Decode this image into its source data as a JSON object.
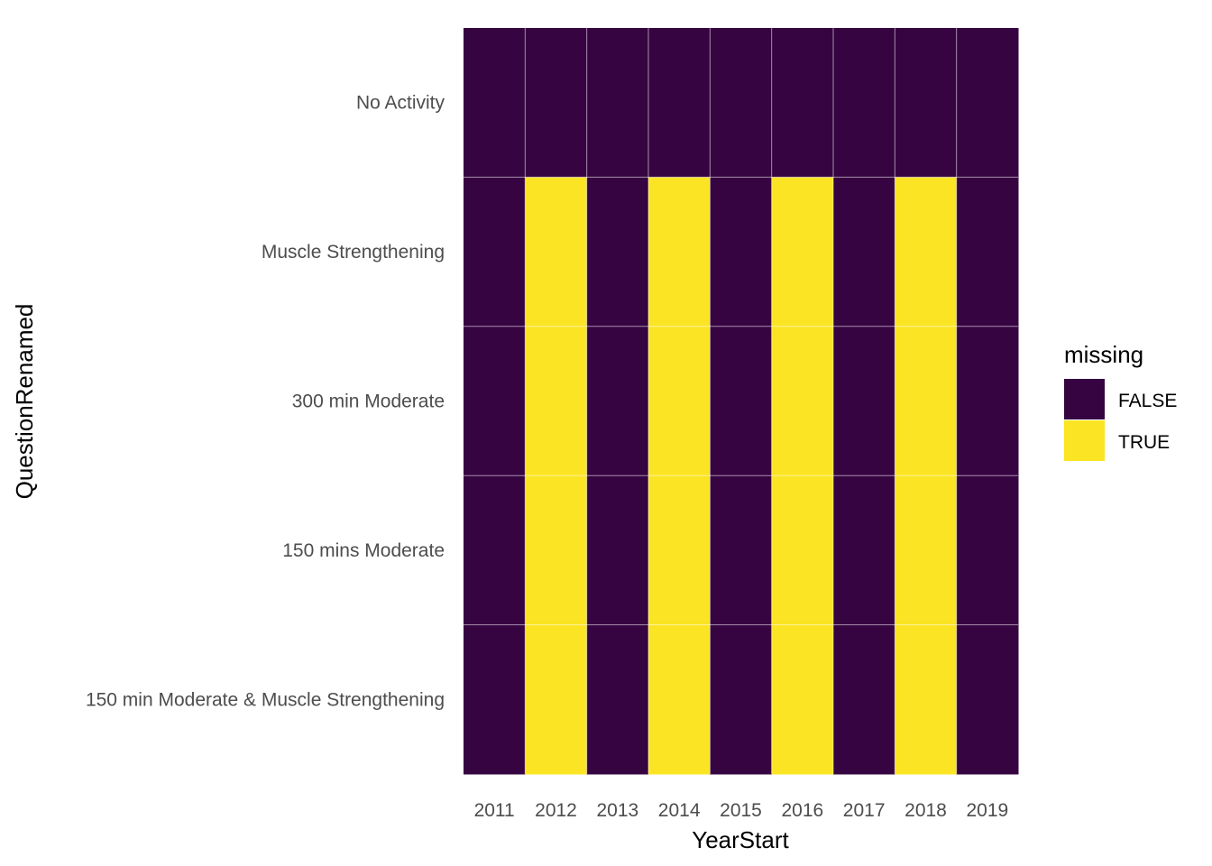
{
  "chart_data": {
    "type": "heatmap",
    "xlabel": "YearStart",
    "ylabel": "QuestionRenamed",
    "x": [
      "2011",
      "2012",
      "2013",
      "2014",
      "2015",
      "2016",
      "2017",
      "2018",
      "2019"
    ],
    "y": [
      "No Activity",
      "Muscle Strengthening",
      "300 min Moderate",
      "150 mins Moderate",
      "150 min Moderate & Muscle Strengthening"
    ],
    "values": [
      [
        false,
        false,
        false,
        false,
        false,
        false,
        false,
        false,
        false
      ],
      [
        false,
        true,
        false,
        true,
        false,
        true,
        false,
        true,
        false
      ],
      [
        false,
        true,
        false,
        true,
        false,
        true,
        false,
        true,
        false
      ],
      [
        false,
        true,
        false,
        true,
        false,
        true,
        false,
        true,
        false
      ],
      [
        false,
        true,
        false,
        true,
        false,
        true,
        false,
        true,
        false
      ]
    ],
    "legend": {
      "title": "missing",
      "placement": "right",
      "entries": [
        {
          "label": "FALSE",
          "color": "#360441"
        },
        {
          "label": "TRUE",
          "color": "#FBE423"
        }
      ]
    },
    "grid": true
  }
}
